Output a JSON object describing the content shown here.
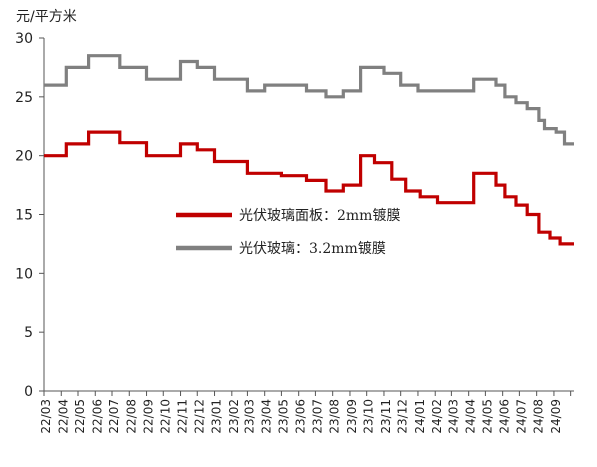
{
  "chart_data": {
    "type": "line",
    "unit_label": "元/平方米",
    "ylim": [
      0,
      30
    ],
    "yticks": [
      0,
      5,
      10,
      15,
      20,
      25,
      30
    ],
    "grid": false,
    "legend_placement": "center",
    "x_range": [
      "2022-03-01",
      "2024-10-07"
    ],
    "x_tick_labels": [
      "22/03",
      "22/04",
      "22/05",
      "22/06",
      "22/07",
      "22/08",
      "22/09",
      "22/10",
      "22/11",
      "22/12",
      "23/01",
      "23/02",
      "23/03",
      "23/04",
      "23/05",
      "23/06",
      "23/07",
      "23/08",
      "23/09",
      "23/10",
      "23/11",
      "23/12",
      "24/01",
      "24/02",
      "24/03",
      "24/04",
      "24/05",
      "24/06",
      "24/07",
      "24/08",
      "24/09"
    ],
    "series": [
      {
        "name": "光伏玻璃面板：2mm镀膜",
        "color": "#c00000",
        "step": true,
        "points": [
          [
            "2022-03-01",
            20
          ],
          [
            "2022-04-10",
            21
          ],
          [
            "2022-05-20",
            22
          ],
          [
            "2022-07-15",
            21.1
          ],
          [
            "2022-09-01",
            20
          ],
          [
            "2022-11-01",
            21
          ],
          [
            "2022-12-01",
            20.5
          ],
          [
            "2023-01-01",
            19.5
          ],
          [
            "2023-03-01",
            18.5
          ],
          [
            "2023-05-01",
            18.3
          ],
          [
            "2023-06-15",
            17.9
          ],
          [
            "2023-07-20",
            17
          ],
          [
            "2023-08-20",
            17.5
          ],
          [
            "2023-09-20",
            20
          ],
          [
            "2023-10-15",
            19.4
          ],
          [
            "2023-11-15",
            18
          ],
          [
            "2023-12-10",
            17
          ],
          [
            "2024-01-05",
            16.5
          ],
          [
            "2024-02-05",
            16
          ],
          [
            "2024-04-10",
            18.5
          ],
          [
            "2024-05-20",
            17.5
          ],
          [
            "2024-06-05",
            16.5
          ],
          [
            "2024-06-25",
            15.8
          ],
          [
            "2024-07-15",
            15
          ],
          [
            "2024-08-05",
            13.5
          ],
          [
            "2024-08-25",
            13
          ],
          [
            "2024-09-12",
            12.5
          ],
          [
            "2024-10-07",
            12.5
          ]
        ]
      },
      {
        "name": "光伏玻璃：3.2mm镀膜",
        "color": "#808080",
        "step": true,
        "points": [
          [
            "2022-03-01",
            26
          ],
          [
            "2022-04-10",
            27.5
          ],
          [
            "2022-05-20",
            28.5
          ],
          [
            "2022-07-15",
            27.5
          ],
          [
            "2022-09-01",
            26.5
          ],
          [
            "2022-11-01",
            28
          ],
          [
            "2022-12-01",
            27.5
          ],
          [
            "2023-01-01",
            26.5
          ],
          [
            "2023-03-01",
            25.5
          ],
          [
            "2023-04-01",
            26
          ],
          [
            "2023-06-15",
            25.5
          ],
          [
            "2023-07-20",
            25
          ],
          [
            "2023-08-20",
            25.5
          ],
          [
            "2023-09-20",
            27.5
          ],
          [
            "2023-11-01",
            27
          ],
          [
            "2023-12-01",
            26
          ],
          [
            "2024-01-01",
            25.5
          ],
          [
            "2024-04-10",
            26.5
          ],
          [
            "2024-05-20",
            26
          ],
          [
            "2024-06-05",
            25
          ],
          [
            "2024-06-25",
            24.5
          ],
          [
            "2024-07-15",
            24
          ],
          [
            "2024-08-05",
            23
          ],
          [
            "2024-08-15",
            22.3
          ],
          [
            "2024-09-05",
            22
          ],
          [
            "2024-09-20",
            21
          ],
          [
            "2024-10-07",
            21
          ]
        ]
      }
    ]
  }
}
